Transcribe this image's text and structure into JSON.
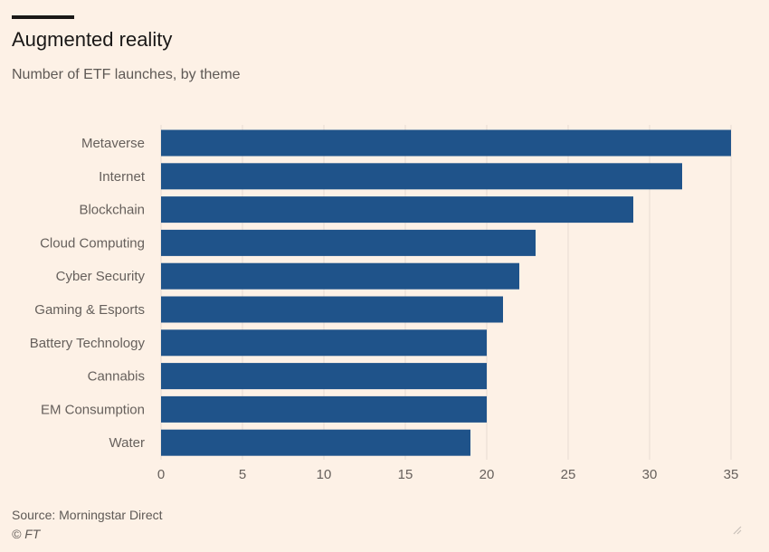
{
  "header": {
    "title": "Augmented reality",
    "subtitle": "Number of ETF launches, by theme"
  },
  "footer": {
    "source": "Source: Morningstar Direct",
    "credit": "© FT"
  },
  "colors": {
    "bar": "#1f538a",
    "grid": "#e6dcd3",
    "axis_text": "#66605c",
    "background": "#fdf1e6"
  },
  "chart_data": {
    "type": "bar",
    "orientation": "horizontal",
    "title": "Augmented reality",
    "subtitle": "Number of ETF launches, by theme",
    "categories": [
      "Metaverse",
      "Internet",
      "Blockchain",
      "Cloud Computing",
      "Cyber Security",
      "Gaming & Esports",
      "Battery Technology",
      "Cannabis",
      "EM Consumption",
      "Water"
    ],
    "values": [
      35,
      32,
      29,
      23,
      22,
      21,
      20,
      20,
      20,
      19
    ],
    "xlim": [
      0,
      35
    ],
    "xticks": [
      0,
      5,
      10,
      15,
      20,
      25,
      30,
      35
    ],
    "xlabel": "",
    "ylabel": "",
    "grid": "vertical",
    "legend": "none"
  }
}
